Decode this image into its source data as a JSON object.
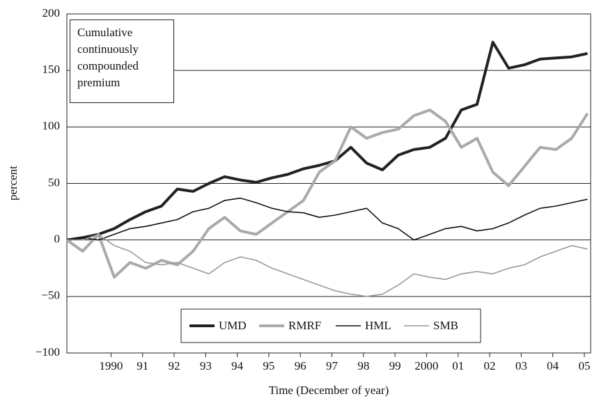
{
  "chart_data": {
    "type": "line",
    "title": "Cumulative continuously compounded premium",
    "x_label": "Time (December of year)",
    "y_label": "percent",
    "x": [
      1988.6,
      1989.1,
      1989.6,
      1990.1,
      1990.6,
      1991.1,
      1991.6,
      1992.1,
      1992.6,
      1993.1,
      1993.6,
      1994.1,
      1994.6,
      1995.1,
      1995.6,
      1996.1,
      1996.6,
      1997.1,
      1997.6,
      1998.1,
      1998.6,
      1999.1,
      1999.6,
      2000.1,
      2000.6,
      2001.1,
      2001.6,
      2002.1,
      2002.6,
      2003.1,
      2003.6,
      2004.1,
      2004.6,
      2005.1
    ],
    "series": [
      {
        "name": "UMD",
        "color": "#222222",
        "width": 4,
        "values": [
          0,
          2,
          5,
          10,
          18,
          25,
          30,
          45,
          43,
          50,
          56,
          53,
          51,
          55,
          58,
          63,
          66,
          70,
          82,
          68,
          62,
          75,
          80,
          82,
          90,
          115,
          120,
          175,
          152,
          155,
          160,
          161,
          162,
          165
        ]
      },
      {
        "name": "RMRF",
        "color": "#aaaaaa",
        "width": 4,
        "values": [
          0,
          -10,
          5,
          -33,
          -20,
          -25,
          -18,
          -22,
          -10,
          10,
          20,
          8,
          5,
          15,
          25,
          35,
          60,
          70,
          100,
          90,
          95,
          98,
          110,
          115,
          105,
          82,
          90,
          60,
          48,
          65,
          82,
          80,
          90,
          112
        ]
      },
      {
        "name": "HML",
        "color": "#111111",
        "width": 1.6,
        "values": [
          0,
          2,
          0,
          5,
          10,
          12,
          15,
          18,
          25,
          28,
          35,
          37,
          33,
          28,
          25,
          24,
          20,
          22,
          25,
          28,
          15,
          10,
          0,
          5,
          10,
          12,
          8,
          10,
          15,
          22,
          28,
          30,
          33,
          36
        ]
      },
      {
        "name": "SMB",
        "color": "#999999",
        "width": 1.6,
        "values": [
          0,
          0,
          5,
          -5,
          -10,
          -20,
          -22,
          -20,
          -25,
          -30,
          -20,
          -15,
          -18,
          -25,
          -30,
          -35,
          -40,
          -45,
          -48,
          -50,
          -48,
          -40,
          -30,
          -33,
          -35,
          -30,
          -28,
          -30,
          -25,
          -22,
          -15,
          -10,
          -5,
          -8
        ]
      }
    ],
    "xlim": [
      1988.6,
      2005.2
    ],
    "xticks": [
      1990,
      {
        "value": 1991,
        "label": "91"
      },
      {
        "value": 1992,
        "label": "92"
      },
      {
        "value": 1993,
        "label": "93"
      },
      {
        "value": 1994,
        "label": "94"
      },
      {
        "value": 1995,
        "label": "95"
      },
      {
        "value": 1996,
        "label": "96"
      },
      {
        "value": 1997,
        "label": "97"
      },
      {
        "value": 1998,
        "label": "98"
      },
      {
        "value": 1999,
        "label": "99"
      },
      2000,
      {
        "value": 2001,
        "label": "01"
      },
      {
        "value": 2002,
        "label": "02"
      },
      {
        "value": 2003,
        "label": "03"
      },
      {
        "value": 2004,
        "label": "04"
      },
      {
        "value": 2005,
        "label": "05"
      }
    ],
    "ylim": [
      -100,
      200
    ],
    "yticks": [
      {
        "value": -100,
        "label": "−100"
      },
      {
        "value": -50,
        "label": "−50"
      },
      0,
      50,
      100,
      150,
      200
    ],
    "grid": true
  }
}
